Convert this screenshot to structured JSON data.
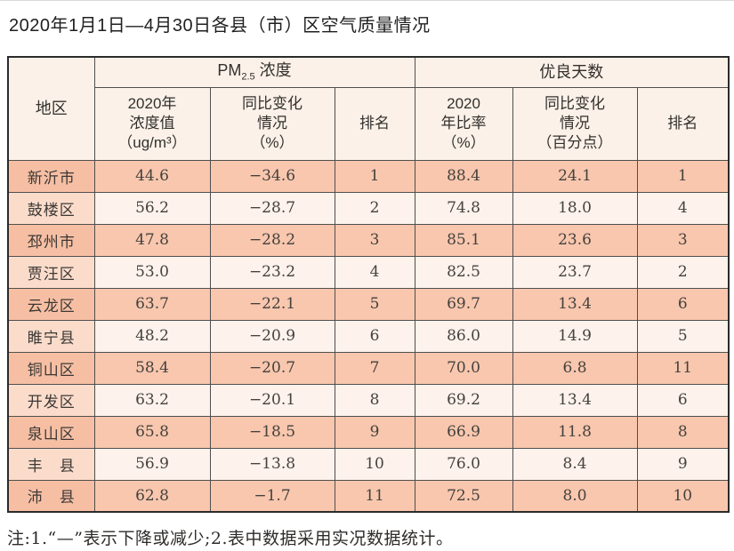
{
  "title": "2020年1月1日—4月30日各县（市）区空气质量情况",
  "table": {
    "header": {
      "region": "地区",
      "pm_group": {
        "prefix": "PM",
        "sub": "2.5",
        "suffix": " 浓度"
      },
      "good_group": "优良天数",
      "pm_value": "2020年\n浓度值\n（ug/m³）",
      "pm_change": "同比变化\n情况\n（%）",
      "pm_rank": "排名",
      "good_ratio": "2020\n年比率\n（%）",
      "good_change": "同比变化\n情况\n（百分点）",
      "good_rank": "排名"
    },
    "rows": [
      {
        "region": "新沂市",
        "pm_value": "44.6",
        "pm_change": "−34.6",
        "pm_rank": "1",
        "good_ratio": "88.4",
        "good_change": "24.1",
        "good_rank": "1"
      },
      {
        "region": "鼓楼区",
        "pm_value": "56.2",
        "pm_change": "−28.7",
        "pm_rank": "2",
        "good_ratio": "74.8",
        "good_change": "18.0",
        "good_rank": "4"
      },
      {
        "region": "邳州市",
        "pm_value": "47.8",
        "pm_change": "−28.2",
        "pm_rank": "3",
        "good_ratio": "85.1",
        "good_change": "23.6",
        "good_rank": "3"
      },
      {
        "region": "贾汪区",
        "pm_value": "53.0",
        "pm_change": "−23.2",
        "pm_rank": "4",
        "good_ratio": "82.5",
        "good_change": "23.7",
        "good_rank": "2"
      },
      {
        "region": "云龙区",
        "pm_value": "63.7",
        "pm_change": "−22.1",
        "pm_rank": "5",
        "good_ratio": "69.7",
        "good_change": "13.4",
        "good_rank": "6"
      },
      {
        "region": "睢宁县",
        "pm_value": "48.2",
        "pm_change": "−20.9",
        "pm_rank": "6",
        "good_ratio": "86.0",
        "good_change": "14.9",
        "good_rank": "5"
      },
      {
        "region": "铜山区",
        "pm_value": "58.4",
        "pm_change": "−20.7",
        "pm_rank": "7",
        "good_ratio": "70.0",
        "good_change": "6.8",
        "good_rank": "11"
      },
      {
        "region": "开发区",
        "pm_value": "63.2",
        "pm_change": "−20.1",
        "pm_rank": "8",
        "good_ratio": "69.2",
        "good_change": "13.4",
        "good_rank": "6"
      },
      {
        "region": "泉山区",
        "pm_value": "65.8",
        "pm_change": "−18.5",
        "pm_rank": "9",
        "good_ratio": "66.9",
        "good_change": "11.8",
        "good_rank": "8"
      },
      {
        "region": "丰　县",
        "pm_value": "56.9",
        "pm_change": "−13.8",
        "pm_rank": "10",
        "good_ratio": "76.0",
        "good_change": "8.4",
        "good_rank": "9"
      },
      {
        "region": "沛　县",
        "pm_value": "62.8",
        "pm_change": "−1.7",
        "pm_rank": "11",
        "good_ratio": "72.5",
        "good_change": "8.0",
        "good_rank": "10"
      }
    ]
  },
  "footnote": "注:1.“—”表示下降或减少;2.表中数据采用实况数据统计。",
  "colors": {
    "row_odd": "#f8c7ae",
    "row_even": "#fdf2ec",
    "region_odd": "#f6bfa4",
    "region_even": "#fbdccb",
    "header_bg": "#fbf1e8"
  }
}
